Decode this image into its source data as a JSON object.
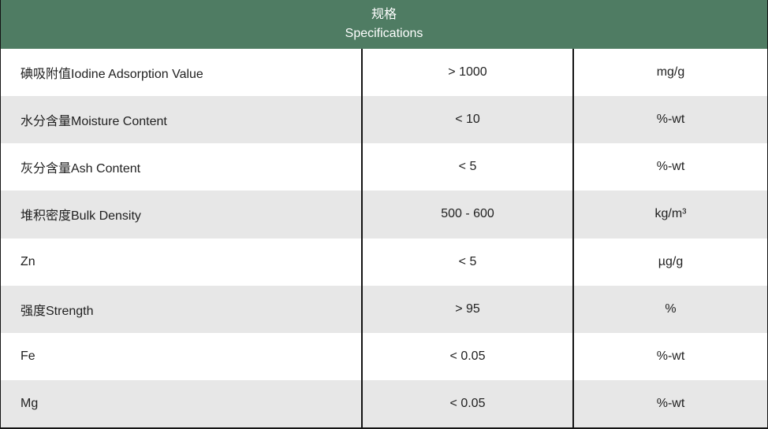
{
  "table": {
    "header": {
      "title_zh": "规格",
      "title_en": "Specifications"
    },
    "columns": [
      "parameter",
      "value",
      "unit"
    ],
    "rows": [
      {
        "name": "碘吸附值Iodine Adsorption Value",
        "value": "> 1000",
        "unit": "mg/g"
      },
      {
        "name": "水分含量Moisture Content",
        "value": "< 10",
        "unit": "%-wt"
      },
      {
        "name": "灰分含量Ash Content",
        "value": "< 5",
        "unit": "%-wt"
      },
      {
        "name": "堆积密度Bulk Density",
        "value": "500 - 600",
        "unit": "kg/m³"
      },
      {
        "name": "Zn",
        "value": "< 5",
        "unit": "µg/g"
      },
      {
        "name": "强度Strength",
        "value": "> 95",
        "unit": "%"
      },
      {
        "name": "Fe",
        "value": "< 0.05",
        "unit": "%-wt"
      },
      {
        "name": "Mg",
        "value": "< 0.05",
        "unit": "%-wt"
      }
    ],
    "colors": {
      "header_bg": "#4f7c63",
      "header_text": "#ffffff",
      "row_bg": "#ffffff",
      "row_alt_bg": "#e7e7e7",
      "border": "#141414",
      "text": "#1f1f1f"
    }
  }
}
